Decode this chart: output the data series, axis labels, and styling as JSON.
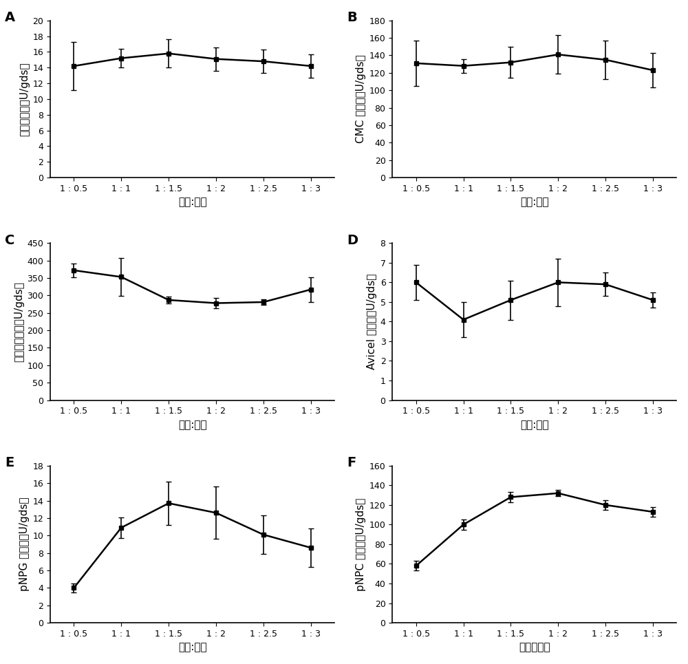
{
  "x_labels": [
    "1 : 0.5",
    "1 : 1",
    "1 : 1.5",
    "1 : 2",
    "1 : 2.5",
    "1 : 3"
  ],
  "xlabel_normal": "固体:液体",
  "xlabel_F": "固体：液体",
  "panel_labels": [
    "A",
    "B",
    "C",
    "D",
    "E",
    "F"
  ],
  "panels": [
    {
      "ylabel": "滤纸酶活力（U/gds）",
      "y": [
        14.2,
        15.2,
        15.8,
        15.1,
        14.8,
        14.2
      ],
      "yerr": [
        3.1,
        1.2,
        1.8,
        1.5,
        1.5,
        1.5
      ],
      "ylim": [
        0,
        20
      ],
      "yticks": [
        0,
        2,
        4,
        6,
        8,
        10,
        12,
        14,
        16,
        18,
        20
      ],
      "xlabel": "固体:液体"
    },
    {
      "ylabel": "CMC 酶活力（U/gds）",
      "y": [
        131,
        128,
        132,
        141,
        135,
        123
      ],
      "yerr": [
        26,
        8,
        18,
        22,
        22,
        20
      ],
      "ylim": [
        0,
        180
      ],
      "yticks": [
        0,
        20,
        40,
        60,
        80,
        100,
        120,
        140,
        160,
        180
      ],
      "xlabel": "固体:液体"
    },
    {
      "ylabel": "木葧糖酶活力（U/gds）",
      "y": [
        372,
        353,
        287,
        278,
        281,
        317
      ],
      "yerr": [
        20,
        55,
        10,
        15,
        8,
        35
      ],
      "ylim": [
        0,
        450
      ],
      "yticks": [
        0,
        50,
        100,
        150,
        200,
        250,
        300,
        350,
        400,
        450
      ],
      "xlabel": "固体:液体"
    },
    {
      "ylabel": "Avicel 酶活力（U/gds）",
      "y": [
        6.0,
        4.1,
        5.1,
        6.0,
        5.9,
        5.1
      ],
      "yerr": [
        0.9,
        0.9,
        1.0,
        1.2,
        0.6,
        0.4
      ],
      "ylim": [
        0,
        8
      ],
      "yticks": [
        0,
        1,
        2,
        3,
        4,
        5,
        6,
        7,
        8
      ],
      "xlabel": "固体:液体"
    },
    {
      "ylabel": "pNPG 酶活力（U/gds）",
      "y": [
        4.0,
        10.9,
        13.7,
        12.6,
        10.1,
        8.6
      ],
      "yerr": [
        0.5,
        1.2,
        2.5,
        3.0,
        2.2,
        2.2
      ],
      "ylim": [
        0,
        18
      ],
      "yticks": [
        0,
        2,
        4,
        6,
        8,
        10,
        12,
        14,
        16,
        18
      ],
      "xlabel": "固体:液体"
    },
    {
      "ylabel": "pNPC 酶活力（U/gds）",
      "y": [
        58,
        100,
        128,
        132,
        120,
        113
      ],
      "yerr": [
        5,
        5,
        5,
        3,
        5,
        5
      ],
      "ylim": [
        0,
        160
      ],
      "yticks": [
        0,
        20,
        40,
        60,
        80,
        100,
        120,
        140,
        160
      ],
      "xlabel": "固体：液体"
    }
  ],
  "line_color": "#000000",
  "marker": "s",
  "markersize": 5,
  "linewidth": 1.8,
  "capsize": 3,
  "elinewidth": 1.2,
  "bg_color": "#ffffff",
  "font_size_label": 11,
  "font_size_tick": 9,
  "font_size_panel": 14
}
